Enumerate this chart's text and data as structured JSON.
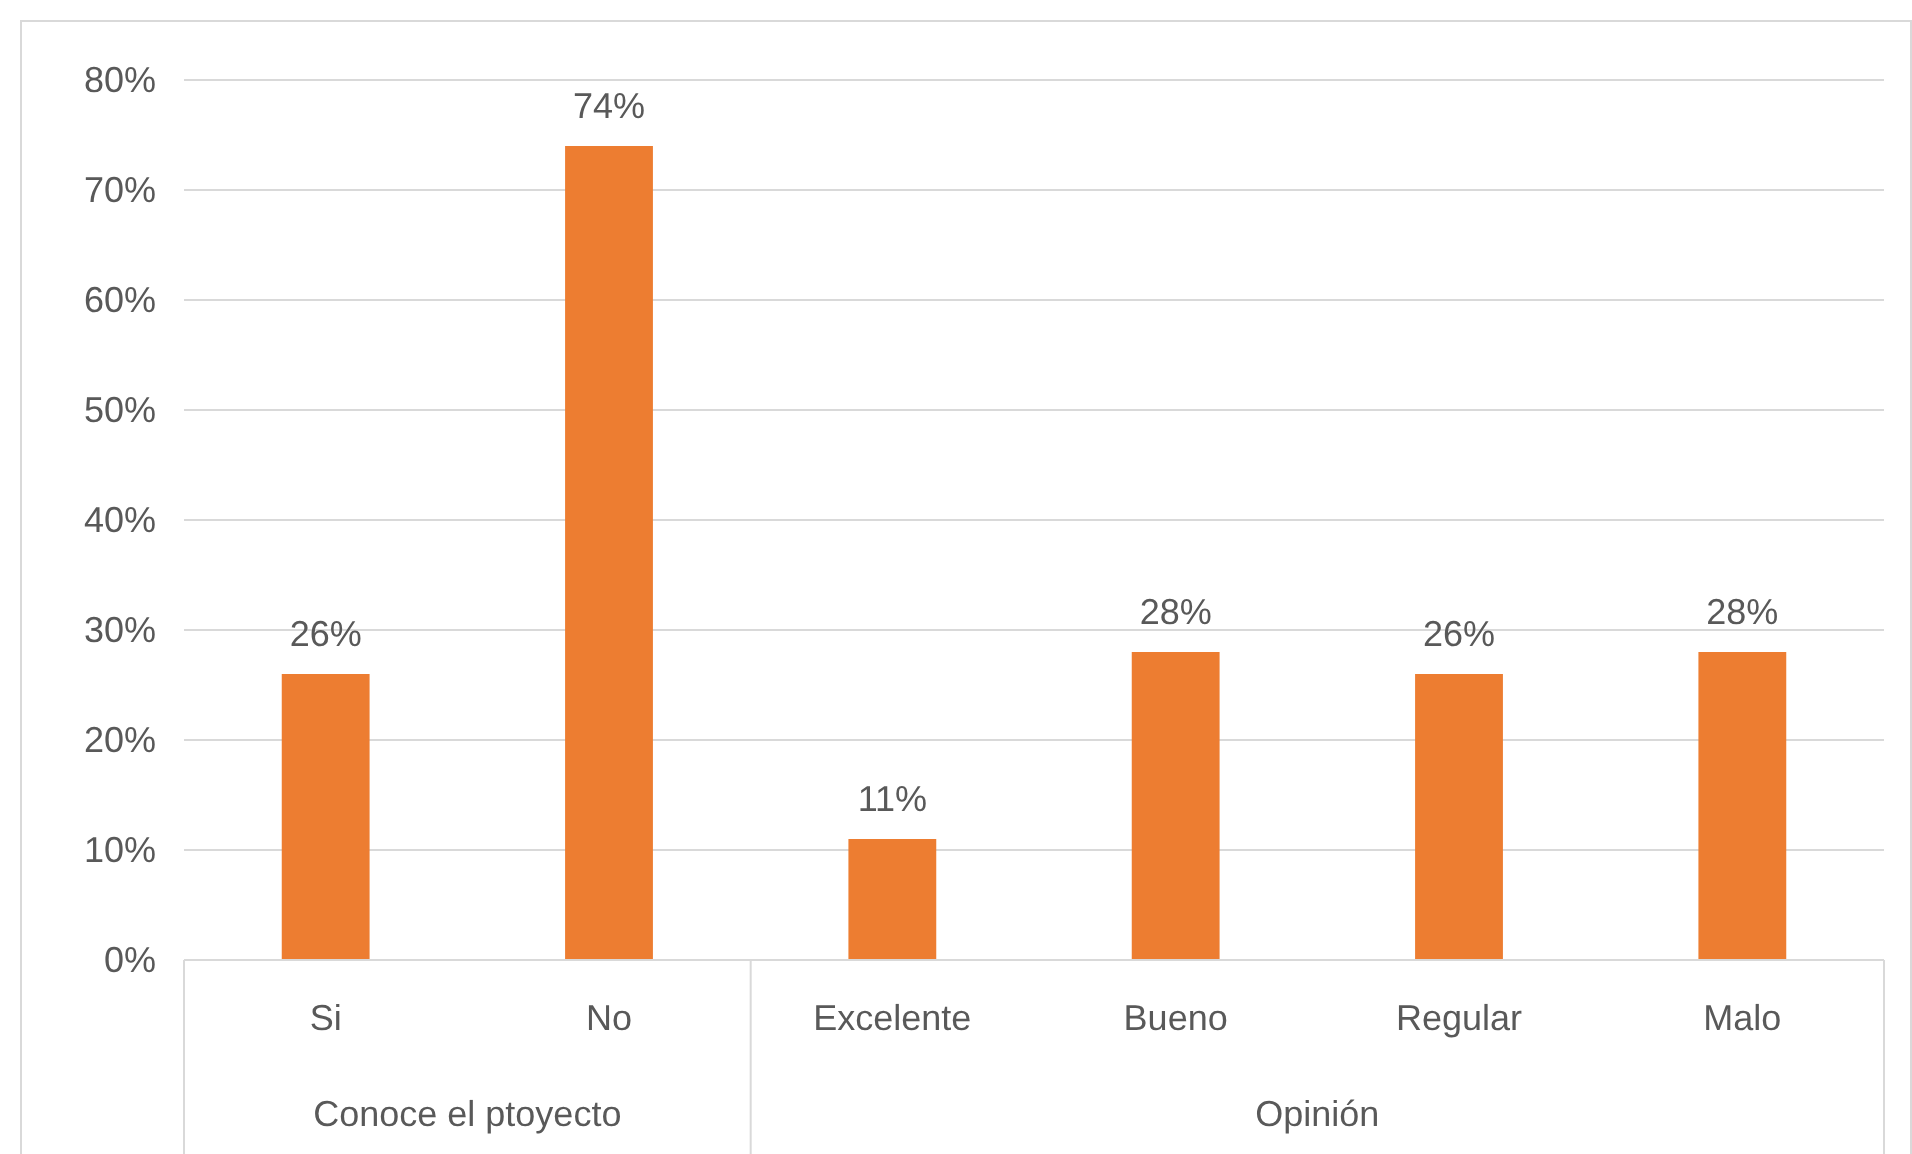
{
  "chart_data": {
    "type": "bar",
    "categories": [
      "Si",
      "No",
      "Excelente",
      "Bueno",
      "Regular",
      "Malo"
    ],
    "values": [
      26,
      74,
      11,
      28,
      26,
      28
    ],
    "color": "#ed7d31",
    "ylim": [
      0,
      80
    ],
    "yticks": [
      {
        "value": 0,
        "label": "0%"
      },
      {
        "value": 10,
        "label": "10%"
      },
      {
        "value": 20,
        "label": "20%"
      },
      {
        "value": 30,
        "label": "30%"
      },
      {
        "value": 40,
        "label": "40%"
      },
      {
        "value": 50,
        "label": "50%"
      },
      {
        "value": 60,
        "label": "60%"
      },
      {
        "value": 70,
        "label": "70%"
      },
      {
        "value": 80,
        "label": "80%"
      }
    ],
    "grid": "y",
    "value_labels": [
      "26%",
      "74%",
      "11%",
      "28%",
      "26%",
      "28%"
    ],
    "annotations": [
      "Conoce el ptoyecto",
      "Opinión"
    ]
  }
}
